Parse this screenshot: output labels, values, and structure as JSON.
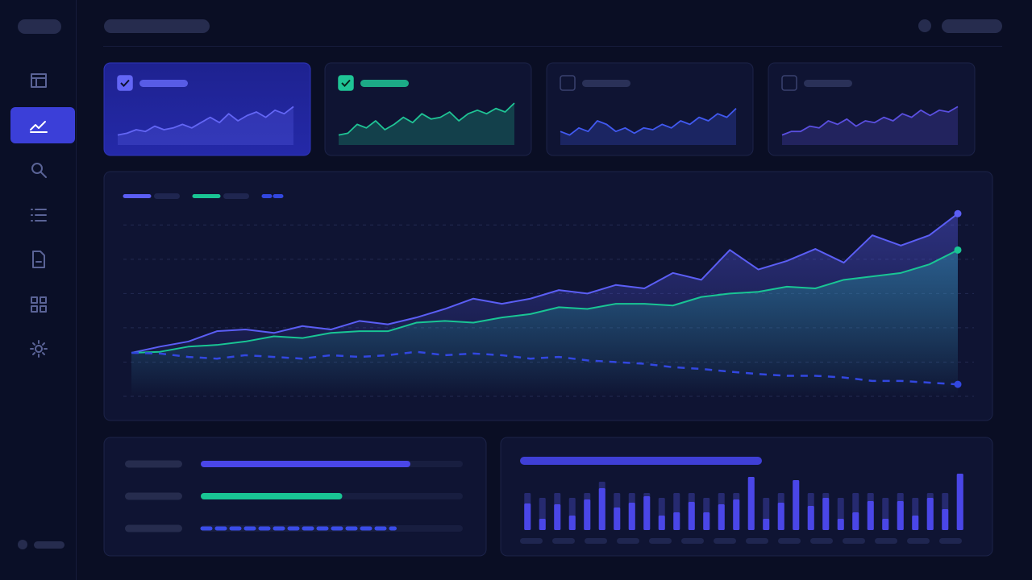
{
  "nav": {
    "active": 1
  },
  "sparklines": {
    "ylim": [
      0,
      10
    ],
    "cards": [
      {
        "selected": true,
        "color": "#6366f5",
        "values": [
          1,
          1.5,
          2.5,
          2,
          3.5,
          2.5,
          3,
          4,
          3,
          4.5,
          6,
          4.5,
          7,
          5,
          6.5,
          7.5,
          6,
          8,
          7,
          9
        ]
      },
      {
        "selected": true,
        "color": "#1fc495",
        "values": [
          1,
          1.5,
          4,
          3,
          5,
          2.5,
          4,
          6,
          4.5,
          7,
          5.5,
          6,
          7.5,
          5,
          7,
          8,
          7,
          8.5,
          7.5,
          10
        ]
      },
      {
        "selected": false,
        "color": "#4159f0",
        "values": [
          2,
          1,
          3,
          2,
          5,
          4,
          2,
          3,
          1.5,
          3,
          2.5,
          4,
          3,
          5,
          4,
          6,
          5,
          7,
          6,
          8.5
        ]
      },
      {
        "selected": false,
        "color": "#5a4fe0",
        "values": [
          1,
          2,
          2,
          3.5,
          3,
          5,
          4,
          5.5,
          3.5,
          5,
          4.5,
          6,
          5,
          7,
          6,
          8,
          6.5,
          8,
          7.5,
          9
        ]
      }
    ]
  },
  "chart_data": {
    "type": "line",
    "ylim": [
      0,
      5.5
    ],
    "yticks": [
      0,
      1,
      2,
      3,
      4,
      5
    ],
    "grid": true,
    "series": [
      {
        "color": "#5b5ef5",
        "dashed": false,
        "fill": true,
        "values": [
          1.27,
          1.45,
          1.6,
          1.9,
          1.95,
          1.85,
          2.05,
          1.95,
          2.2,
          2.1,
          2.3,
          2.55,
          2.85,
          2.7,
          2.85,
          3.1,
          3.0,
          3.25,
          3.15,
          3.6,
          3.4,
          4.27,
          3.7,
          3.95,
          4.3,
          3.9,
          4.7,
          4.4,
          4.7,
          5.33
        ]
      },
      {
        "color": "#19c594",
        "dashed": false,
        "fill": true,
        "values": [
          1.27,
          1.3,
          1.45,
          1.5,
          1.6,
          1.75,
          1.7,
          1.85,
          1.9,
          1.9,
          2.15,
          2.2,
          2.15,
          2.3,
          2.4,
          2.6,
          2.55,
          2.7,
          2.7,
          2.65,
          2.9,
          3.0,
          3.05,
          3.2,
          3.15,
          3.4,
          3.5,
          3.6,
          3.85,
          4.27
        ]
      },
      {
        "color": "#3247e0",
        "dashed": true,
        "fill": false,
        "values": [
          1.27,
          1.25,
          1.15,
          1.1,
          1.2,
          1.15,
          1.1,
          1.2,
          1.15,
          1.2,
          1.3,
          1.2,
          1.25,
          1.2,
          1.1,
          1.15,
          1.05,
          1.0,
          0.95,
          0.85,
          0.8,
          0.72,
          0.65,
          0.6,
          0.6,
          0.55,
          0.45,
          0.45,
          0.4,
          0.35
        ]
      }
    ]
  },
  "progress": {
    "xlim": [
      0,
      100
    ],
    "bars": [
      {
        "color": "#4a46e8",
        "dashed": false,
        "value": 80
      },
      {
        "color": "#19c594",
        "dashed": false,
        "value": 54
      },
      {
        "color": "#3a4ce8",
        "dashed": true,
        "value": 74
      }
    ]
  },
  "bar_chart": {
    "type": "bar",
    "ylim": [
      0,
      70
    ],
    "series": [
      {
        "color": "#262a70",
        "values": [
          46,
          40,
          46,
          40,
          46,
          60,
          46,
          46,
          46,
          40,
          46,
          46,
          40,
          46,
          46,
          66,
          40,
          46,
          62,
          46,
          46,
          40,
          46,
          46,
          40,
          46,
          40,
          46,
          46,
          70
        ]
      },
      {
        "color": "#4a46e8",
        "values": [
          33,
          14,
          32,
          18,
          38,
          52,
          28,
          34,
          42,
          18,
          22,
          35,
          22,
          32,
          38,
          66,
          14,
          34,
          62,
          30,
          40,
          14,
          22,
          36,
          14,
          36,
          18,
          40,
          26,
          70
        ]
      }
    ]
  }
}
